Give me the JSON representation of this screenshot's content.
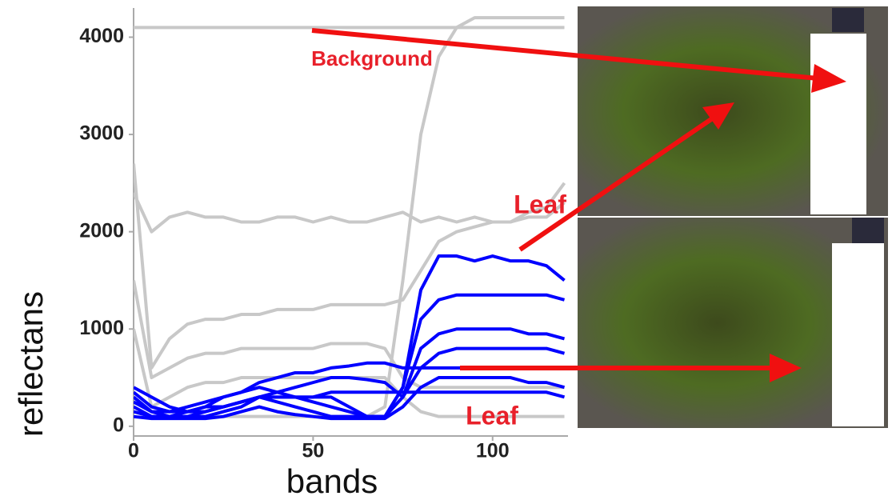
{
  "chart_data": {
    "type": "line",
    "xlabel": "bands",
    "ylabel": "reflectans",
    "annotations": [
      "Background",
      "Leaf",
      "Leaf"
    ],
    "x": [
      0,
      5,
      10,
      15,
      20,
      25,
      30,
      35,
      40,
      45,
      50,
      55,
      60,
      65,
      70,
      75,
      80,
      85,
      90,
      95,
      100,
      105,
      110,
      115,
      120
    ],
    "series": [
      {
        "color": "#c8c8c8",
        "values": [
          4100,
          4100,
          4100,
          4100,
          4100,
          4100,
          4100,
          4100,
          4100,
          4100,
          4100,
          4100,
          4100,
          4100,
          4100,
          4100,
          4100,
          4100,
          4100,
          4100,
          4100,
          4100,
          4100,
          4100,
          4100
        ]
      },
      {
        "color": "#c8c8c8",
        "values": [
          300,
          150,
          100,
          100,
          100,
          100,
          100,
          100,
          100,
          100,
          100,
          100,
          100,
          100,
          200,
          1500,
          3000,
          3800,
          4100,
          4200,
          4200,
          4200,
          4200,
          4200,
          4200
        ]
      },
      {
        "color": "#c8c8c8",
        "values": [
          2400,
          2000,
          2150,
          2200,
          2150,
          2150,
          2100,
          2100,
          2150,
          2150,
          2100,
          2150,
          2100,
          2100,
          2150,
          2200,
          2100,
          2150,
          2100,
          2150,
          2100,
          2100,
          2150,
          2150,
          2300
        ]
      },
      {
        "color": "#c8c8c8",
        "values": [
          2700,
          600,
          900,
          1050,
          1100,
          1100,
          1150,
          1150,
          1200,
          1200,
          1200,
          1250,
          1250,
          1250,
          1250,
          1300,
          1600,
          1900,
          2000,
          2050,
          2100,
          2100,
          2200,
          2250,
          2500
        ]
      },
      {
        "color": "#c8c8c8",
        "values": [
          1500,
          500,
          600,
          700,
          750,
          750,
          800,
          800,
          800,
          800,
          800,
          850,
          850,
          850,
          800,
          500,
          400,
          400,
          400,
          400,
          400,
          400,
          400,
          400,
          400
        ]
      },
      {
        "color": "#c8c8c8",
        "values": [
          1000,
          200,
          300,
          400,
          450,
          450,
          500,
          500,
          500,
          500,
          500,
          500,
          500,
          500,
          500,
          300,
          150,
          100,
          100,
          100,
          100,
          100,
          100,
          100,
          100
        ]
      },
      {
        "color": "#0000ff",
        "values": [
          300,
          150,
          150,
          150,
          200,
          200,
          250,
          300,
          300,
          300,
          300,
          300,
          200,
          100,
          100,
          400,
          1400,
          1750,
          1750,
          1700,
          1750,
          1700,
          1700,
          1650,
          1500
        ]
      },
      {
        "color": "#0000ff",
        "values": [
          250,
          150,
          100,
          150,
          200,
          300,
          350,
          400,
          350,
          300,
          250,
          200,
          150,
          100,
          100,
          400,
          1100,
          1300,
          1350,
          1350,
          1350,
          1350,
          1350,
          1350,
          1300
        ]
      },
      {
        "color": "#0000ff",
        "values": [
          200,
          100,
          100,
          100,
          150,
          200,
          250,
          300,
          250,
          200,
          150,
          100,
          100,
          100,
          100,
          300,
          800,
          950,
          1000,
          1000,
          1000,
          1000,
          950,
          950,
          900
        ]
      },
      {
        "color": "#0000ff",
        "values": [
          150,
          100,
          100,
          100,
          100,
          150,
          200,
          300,
          350,
          400,
          450,
          500,
          500,
          480,
          450,
          300,
          600,
          750,
          800,
          800,
          800,
          800,
          800,
          800,
          750
        ]
      },
      {
        "color": "#0000ff",
        "values": [
          350,
          200,
          150,
          200,
          250,
          300,
          350,
          450,
          500,
          550,
          550,
          600,
          620,
          650,
          650,
          600,
          600,
          600,
          600,
          600,
          600,
          600,
          600,
          600,
          600
        ]
      },
      {
        "color": "#0000ff",
        "values": [
          100,
          80,
          80,
          80,
          80,
          100,
          150,
          200,
          150,
          120,
          100,
          80,
          80,
          80,
          80,
          200,
          400,
          500,
          500,
          500,
          500,
          500,
          450,
          450,
          400
        ]
      },
      {
        "color": "#0000ff",
        "values": [
          400,
          300,
          200,
          150,
          150,
          200,
          250,
          300,
          300,
          300,
          300,
          350,
          350,
          350,
          350,
          350,
          350,
          350,
          350,
          350,
          350,
          350,
          350,
          350,
          300
        ]
      }
    ],
    "xlim": [
      0,
      121
    ],
    "ylim": [
      -100,
      4300
    ],
    "xticks": [
      0,
      50,
      100
    ],
    "yticks": [
      0,
      1000,
      2000,
      3000,
      4000
    ]
  }
}
